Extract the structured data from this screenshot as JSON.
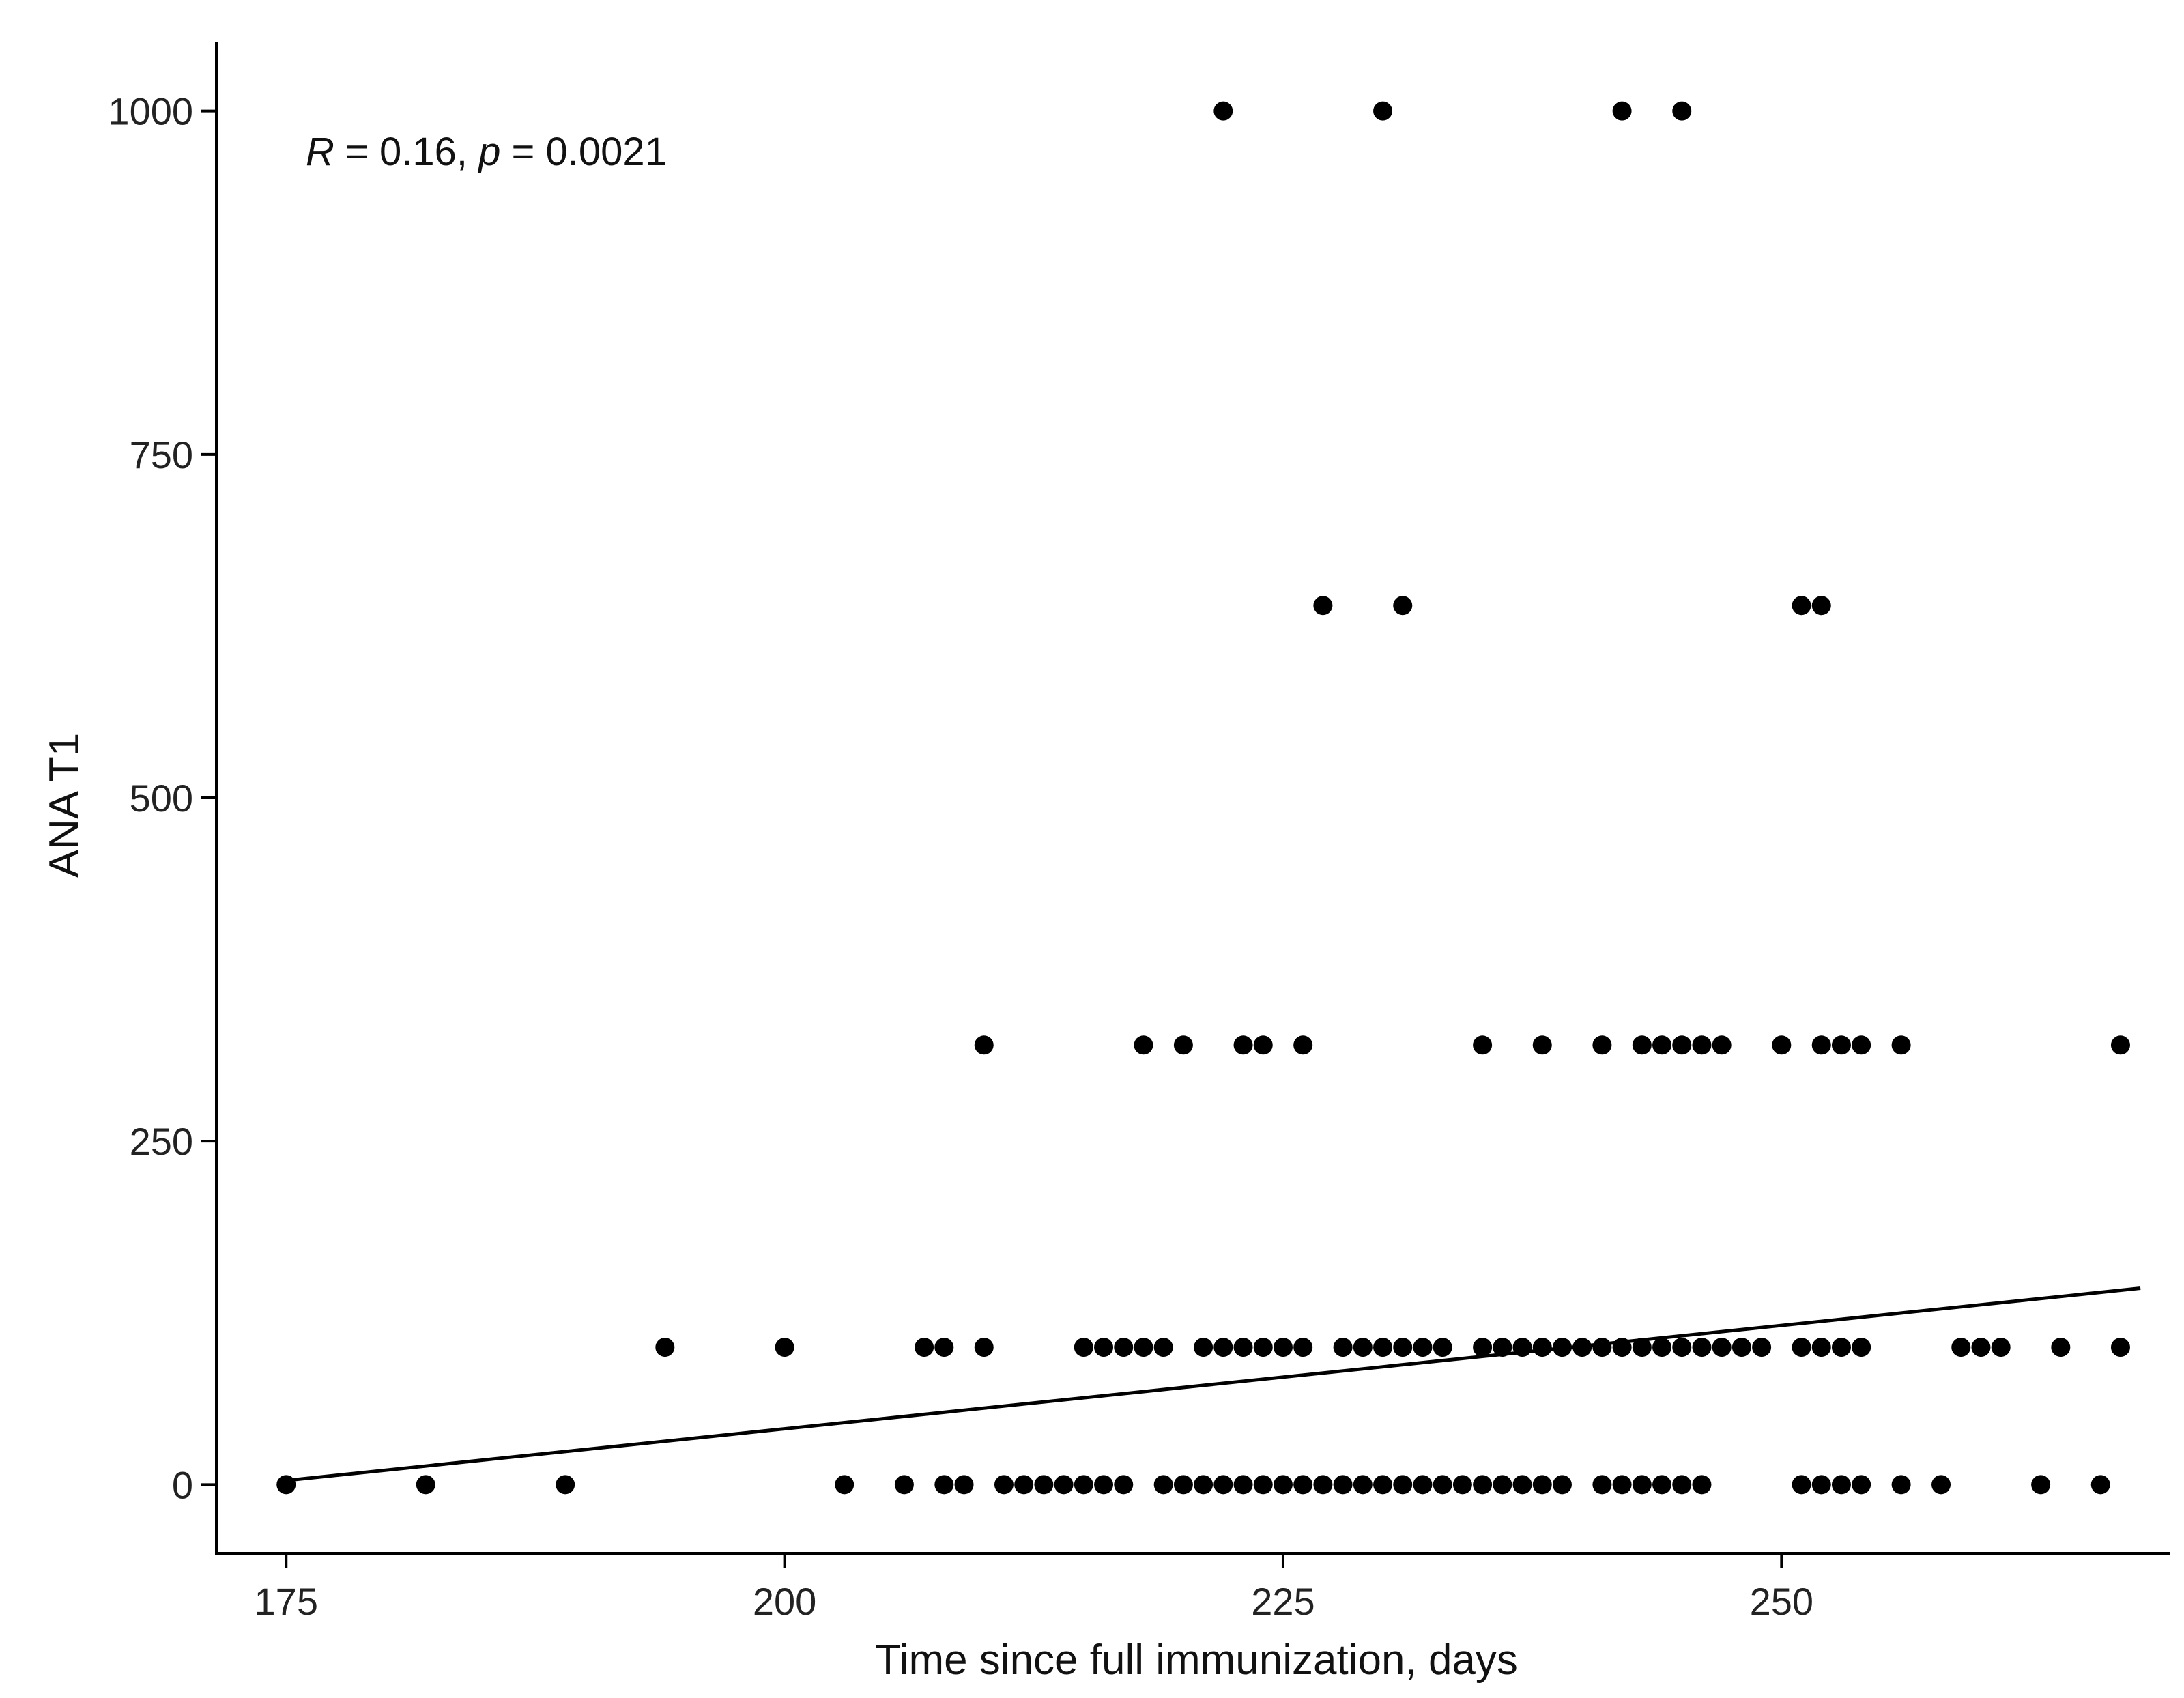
{
  "chart_data": {
    "type": "scatter",
    "xlabel": "Time since full immunization, days",
    "ylabel": "ANA T1",
    "xlim": [
      171.5,
      269.5
    ],
    "ylim": [
      -50,
      1050
    ],
    "xticks": [
      175,
      200,
      225,
      250
    ],
    "yticks": [
      0,
      250,
      500,
      750,
      1000
    ],
    "grid": false,
    "annotation": {
      "r_label": "R",
      "r_text": " = 0.16, ",
      "p_label": "p",
      "p_text": " = 0.0021"
    },
    "trend_line": {
      "x": [
        175,
        268
      ],
      "y": [
        3,
        143
      ]
    },
    "points": [
      {
        "x": 175,
        "y": 0
      },
      {
        "x": 182,
        "y": 0
      },
      {
        "x": 189,
        "y": 0
      },
      {
        "x": 194,
        "y": 100
      },
      {
        "x": 200,
        "y": 100
      },
      {
        "x": 203,
        "y": 0
      },
      {
        "x": 206,
        "y": 0
      },
      {
        "x": 207,
        "y": 100
      },
      {
        "x": 208,
        "y": 100
      },
      {
        "x": 208,
        "y": 0
      },
      {
        "x": 209,
        "y": 0
      },
      {
        "x": 210,
        "y": 100
      },
      {
        "x": 210,
        "y": 320
      },
      {
        "x": 211,
        "y": 0
      },
      {
        "x": 212,
        "y": 0
      },
      {
        "x": 213,
        "y": 0
      },
      {
        "x": 214,
        "y": 0
      },
      {
        "x": 215,
        "y": 0
      },
      {
        "x": 216,
        "y": 0
      },
      {
        "x": 217,
        "y": 0
      },
      {
        "x": 215,
        "y": 100
      },
      {
        "x": 216,
        "y": 100
      },
      {
        "x": 217,
        "y": 100
      },
      {
        "x": 218,
        "y": 100
      },
      {
        "x": 219,
        "y": 100
      },
      {
        "x": 218,
        "y": 320
      },
      {
        "x": 220,
        "y": 320
      },
      {
        "x": 219,
        "y": 0
      },
      {
        "x": 220,
        "y": 0
      },
      {
        "x": 221,
        "y": 0
      },
      {
        "x": 221,
        "y": 100
      },
      {
        "x": 222,
        "y": 100
      },
      {
        "x": 223,
        "y": 100
      },
      {
        "x": 224,
        "y": 100
      },
      {
        "x": 225,
        "y": 100
      },
      {
        "x": 226,
        "y": 100
      },
      {
        "x": 222,
        "y": 0
      },
      {
        "x": 223,
        "y": 0
      },
      {
        "x": 224,
        "y": 0
      },
      {
        "x": 225,
        "y": 0
      },
      {
        "x": 226,
        "y": 0
      },
      {
        "x": 227,
        "y": 0
      },
      {
        "x": 228,
        "y": 0
      },
      {
        "x": 229,
        "y": 0
      },
      {
        "x": 222,
        "y": 1000
      },
      {
        "x": 230,
        "y": 1000
      },
      {
        "x": 223,
        "y": 320
      },
      {
        "x": 224,
        "y": 320
      },
      {
        "x": 226,
        "y": 320
      },
      {
        "x": 227,
        "y": 640
      },
      {
        "x": 231,
        "y": 640
      },
      {
        "x": 228,
        "y": 100
      },
      {
        "x": 229,
        "y": 100
      },
      {
        "x": 230,
        "y": 100
      },
      {
        "x": 231,
        "y": 100
      },
      {
        "x": 232,
        "y": 100
      },
      {
        "x": 233,
        "y": 100
      },
      {
        "x": 230,
        "y": 0
      },
      {
        "x": 231,
        "y": 0
      },
      {
        "x": 232,
        "y": 0
      },
      {
        "x": 233,
        "y": 0
      },
      {
        "x": 234,
        "y": 0
      },
      {
        "x": 235,
        "y": 0
      },
      {
        "x": 236,
        "y": 0
      },
      {
        "x": 237,
        "y": 0
      },
      {
        "x": 238,
        "y": 0
      },
      {
        "x": 239,
        "y": 0
      },
      {
        "x": 235,
        "y": 100
      },
      {
        "x": 236,
        "y": 100
      },
      {
        "x": 237,
        "y": 100
      },
      {
        "x": 238,
        "y": 100
      },
      {
        "x": 239,
        "y": 100
      },
      {
        "x": 240,
        "y": 100
      },
      {
        "x": 235,
        "y": 320
      },
      {
        "x": 238,
        "y": 320
      },
      {
        "x": 241,
        "y": 320
      },
      {
        "x": 241,
        "y": 100
      },
      {
        "x": 242,
        "y": 100
      },
      {
        "x": 243,
        "y": 100
      },
      {
        "x": 244,
        "y": 100
      },
      {
        "x": 245,
        "y": 100
      },
      {
        "x": 246,
        "y": 100
      },
      {
        "x": 247,
        "y": 100
      },
      {
        "x": 241,
        "y": 0
      },
      {
        "x": 242,
        "y": 0
      },
      {
        "x": 243,
        "y": 0
      },
      {
        "x": 244,
        "y": 0
      },
      {
        "x": 245,
        "y": 0
      },
      {
        "x": 246,
        "y": 0
      },
      {
        "x": 242,
        "y": 1000
      },
      {
        "x": 245,
        "y": 1000
      },
      {
        "x": 243,
        "y": 320
      },
      {
        "x": 244,
        "y": 320
      },
      {
        "x": 245,
        "y": 320
      },
      {
        "x": 246,
        "y": 320
      },
      {
        "x": 247,
        "y": 320
      },
      {
        "x": 248,
        "y": 100
      },
      {
        "x": 249,
        "y": 100
      },
      {
        "x": 250,
        "y": 320
      },
      {
        "x": 251,
        "y": 640
      },
      {
        "x": 252,
        "y": 640
      },
      {
        "x": 251,
        "y": 100
      },
      {
        "x": 252,
        "y": 100
      },
      {
        "x": 253,
        "y": 100
      },
      {
        "x": 254,
        "y": 100
      },
      {
        "x": 251,
        "y": 0
      },
      {
        "x": 252,
        "y": 0
      },
      {
        "x": 253,
        "y": 0
      },
      {
        "x": 254,
        "y": 0
      },
      {
        "x": 252,
        "y": 320
      },
      {
        "x": 253,
        "y": 320
      },
      {
        "x": 254,
        "y": 320
      },
      {
        "x": 256,
        "y": 320
      },
      {
        "x": 256,
        "y": 0
      },
      {
        "x": 258,
        "y": 0
      },
      {
        "x": 259,
        "y": 100
      },
      {
        "x": 260,
        "y": 100
      },
      {
        "x": 261,
        "y": 100
      },
      {
        "x": 263,
        "y": 0
      },
      {
        "x": 264,
        "y": 100
      },
      {
        "x": 266,
        "y": 0
      },
      {
        "x": 267,
        "y": 100
      },
      {
        "x": 267,
        "y": 320
      }
    ]
  }
}
